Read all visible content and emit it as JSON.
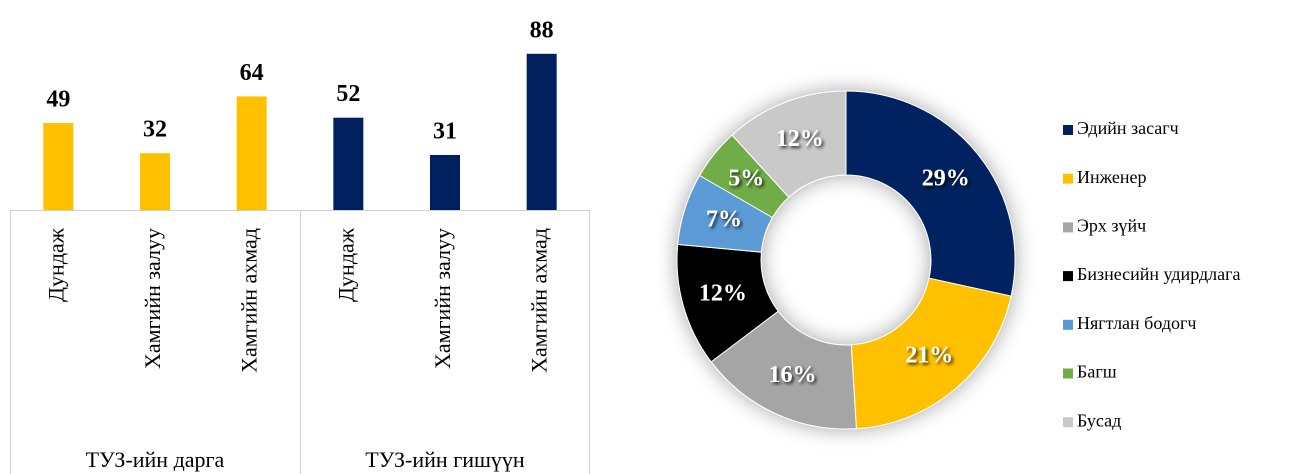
{
  "chart_data": [
    {
      "type": "bar",
      "categories": [
        "Дундаж",
        "Хамгийн залуу",
        "Хамгийн ахмад"
      ],
      "series": [
        {
          "name": "ТУЗ-ийн дарга",
          "color": "#FFC000",
          "values": [
            49,
            32,
            64
          ]
        },
        {
          "name": "ТУЗ-ийн гишүүн",
          "color": "#002060",
          "values": [
            52,
            31,
            88
          ]
        }
      ]
    },
    {
      "type": "pie",
      "categories": [
        "Эдийн засагч",
        "Инженер",
        "Эрх зүйч",
        "Бизнесийн удирдлага",
        "Нягтлан бодогч",
        "Багш",
        "Бусад"
      ],
      "values": [
        29,
        21,
        16,
        12,
        7,
        5,
        12
      ],
      "value_labels": [
        "29%",
        "21%",
        "16%",
        "12%",
        "7%",
        "5%",
        "12%"
      ],
      "colors": [
        "#002060",
        "#FFC000",
        "#A5A5A5",
        "#000000",
        "#5B9BD5",
        "#70AD47",
        "#C9C9C9"
      ],
      "legend": "right"
    }
  ]
}
